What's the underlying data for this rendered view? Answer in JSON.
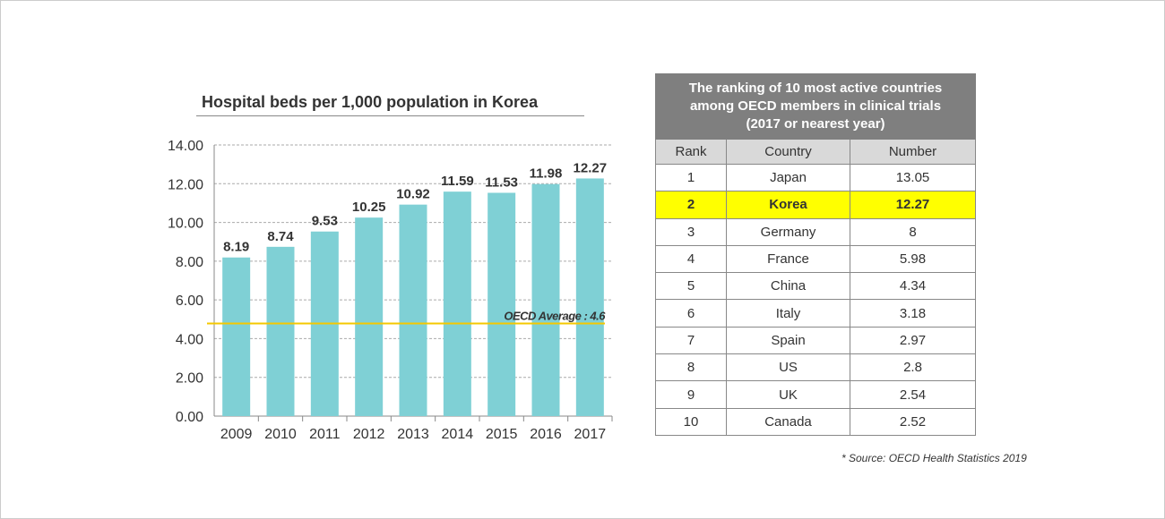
{
  "chart_data": {
    "type": "bar",
    "title": "Hospital beds per 1,000 population in Korea",
    "categories": [
      "2009",
      "2010",
      "2011",
      "2012",
      "2013",
      "2014",
      "2015",
      "2016",
      "2017"
    ],
    "values": [
      8.19,
      8.74,
      9.53,
      10.25,
      10.92,
      11.59,
      11.53,
      11.98,
      12.27
    ],
    "value_labels": [
      "8.19",
      "8.74",
      "9.53",
      "10.25",
      "10.92",
      "11.59",
      "11.53",
      "11.98",
      "12.27"
    ],
    "ylim": [
      0,
      14
    ],
    "yticks": [
      "0.00",
      "2.00",
      "4.00",
      "6.00",
      "8.00",
      "10.00",
      "12.00",
      "14.00"
    ],
    "grid": true,
    "bar_color": "#7fd0d5",
    "reference_line": {
      "label": "OECD Average  : 4.6",
      "value": 4.6,
      "color": "#f5c800"
    },
    "xlabel": "",
    "ylabel": ""
  },
  "table": {
    "title_lines": [
      "The ranking of 10 most active countries",
      "among OECD members in clinical trials",
      "(2017 or nearest year)"
    ],
    "headers": [
      "Rank",
      "Country",
      "Number"
    ],
    "rows": [
      [
        "1",
        "Japan",
        "13.05"
      ],
      [
        "2",
        "Korea",
        "12.27"
      ],
      [
        "3",
        "Germany",
        "8"
      ],
      [
        "4",
        "France",
        "5.98"
      ],
      [
        "5",
        "China",
        "4.34"
      ],
      [
        "6",
        "Italy",
        "3.18"
      ],
      [
        "7",
        "Spain",
        "2.97"
      ],
      [
        "8",
        "US",
        "2.8"
      ],
      [
        "9",
        "UK",
        "2.54"
      ],
      [
        "10",
        "Canada",
        "2.52"
      ]
    ],
    "highlight_color": "#ffff00"
  },
  "source": "* Source: OECD Health Statistics 2019"
}
